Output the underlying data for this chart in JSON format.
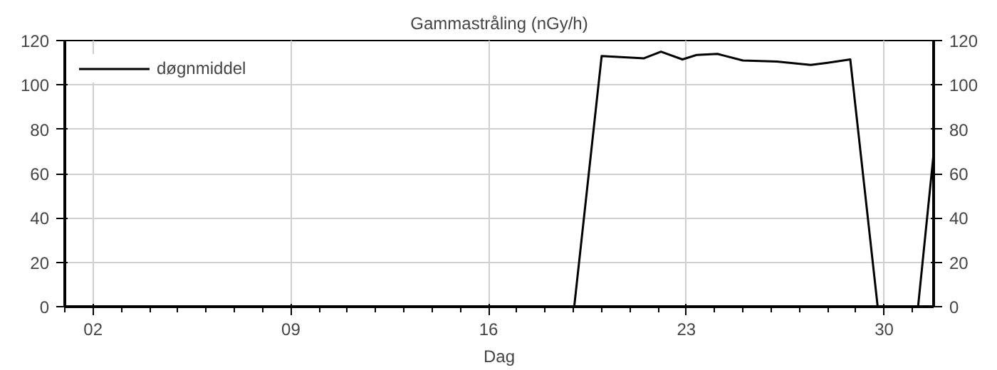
{
  "chart_data": {
    "type": "line",
    "title": "Gammastråling (nGy/h)",
    "xlabel": "Dag",
    "x": [
      1,
      19.03,
      20.0,
      21.5,
      22.1,
      22.86,
      23.36,
      24.1,
      25.0,
      26.2,
      27.4,
      28.0,
      28.8,
      29.77,
      31.2,
      31.75
    ],
    "series": [
      {
        "name": "døgnmiddel",
        "color": "#000000",
        "values": [
          0,
          0,
          113,
          112,
          115,
          111.5,
          113.5,
          114,
          111,
          110.5,
          109,
          110,
          111.5,
          0,
          0,
          69
        ]
      }
    ],
    "xlim": [
      1,
      31.75
    ],
    "xticks": [
      {
        "value": 2,
        "label": "02"
      },
      {
        "value": 9,
        "label": "09"
      },
      {
        "value": 16,
        "label": "16"
      },
      {
        "value": 23,
        "label": "23"
      },
      {
        "value": 30,
        "label": "30"
      }
    ],
    "ylim": [
      0,
      120
    ],
    "yticks": [
      0,
      20,
      40,
      60,
      80,
      100,
      120
    ],
    "y2lim": [
      0,
      120
    ],
    "y2ticks": [
      0,
      20,
      40,
      60,
      80,
      100,
      120
    ],
    "grid": true,
    "legend": "top left",
    "marker": "none",
    "line_style": "solid"
  }
}
